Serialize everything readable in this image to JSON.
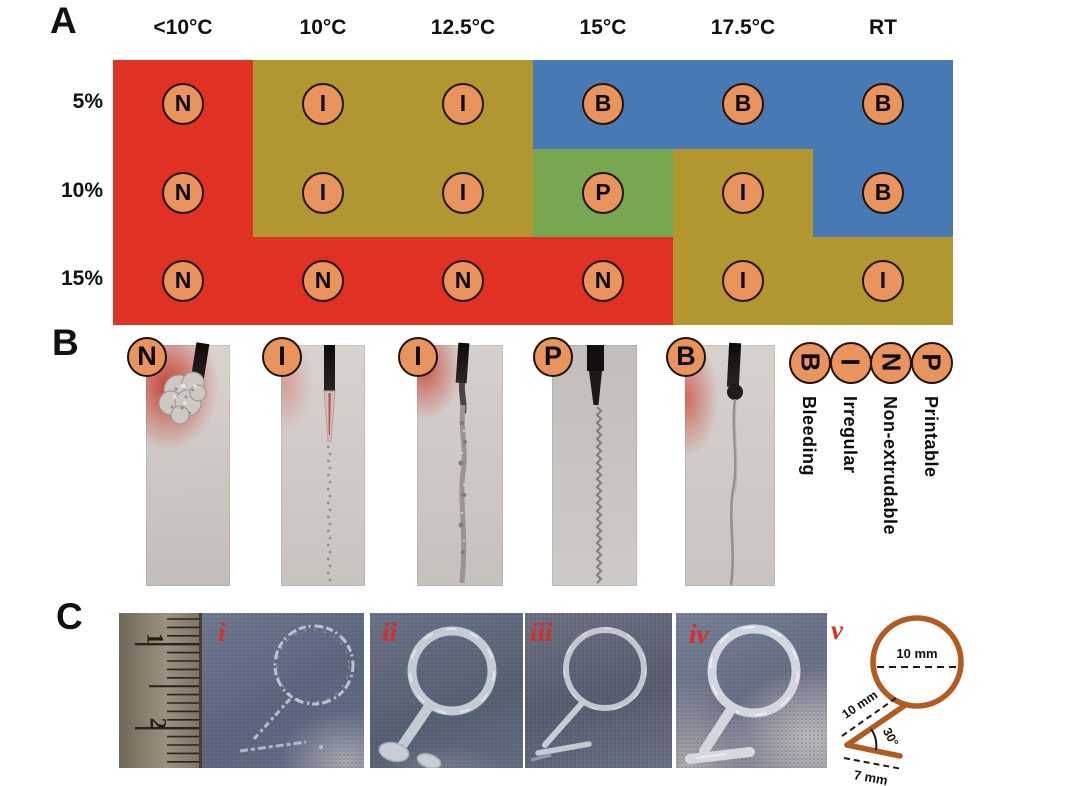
{
  "colors": {
    "red": "#e03122",
    "olive": "#b2962f",
    "blue": "#4779b4",
    "green": "#77a751",
    "badge_fill": "#e8945c",
    "badge_border": "#231405",
    "diagram_accent": "#b35a1e",
    "label_red": "#e32a21"
  },
  "panelA": {
    "label": "A",
    "columns": [
      "<10°C",
      "10°C",
      "12.5°C",
      "15°C",
      "17.5°C",
      "RT"
    ],
    "rows": [
      "5%",
      "10%",
      "15%"
    ],
    "cell_colors": [
      [
        "red",
        "olive",
        "olive",
        "blue",
        "blue",
        "blue"
      ],
      [
        "red",
        "olive",
        "olive",
        "green",
        "olive",
        "blue"
      ],
      [
        "red",
        "red",
        "red",
        "red",
        "olive",
        "olive"
      ]
    ],
    "cell_letters": [
      [
        "N",
        "I",
        "I",
        "B",
        "B",
        "B"
      ],
      [
        "N",
        "I",
        "I",
        "P",
        "I",
        "B"
      ],
      [
        "N",
        "N",
        "N",
        "N",
        "I",
        "I"
      ]
    ]
  },
  "panelB": {
    "label": "B",
    "photo_badges": [
      "N",
      "I",
      "I",
      "P",
      "B"
    ],
    "legend": [
      {
        "letter": "B",
        "label": "Bleeding"
      },
      {
        "letter": "I",
        "label": "Irregular"
      },
      {
        "letter": "N",
        "label": "Non-extrudable"
      },
      {
        "letter": "P",
        "label": "Printable"
      }
    ]
  },
  "panelC": {
    "label": "C",
    "photo_labels": [
      "i",
      "ii",
      "iii",
      "iv",
      "v"
    ],
    "ruler_numbers": [
      "1",
      "2"
    ],
    "diagram": {
      "diameter": "10 mm",
      "tail": "10 mm",
      "angle": "30°",
      "base": "7 mm"
    }
  }
}
